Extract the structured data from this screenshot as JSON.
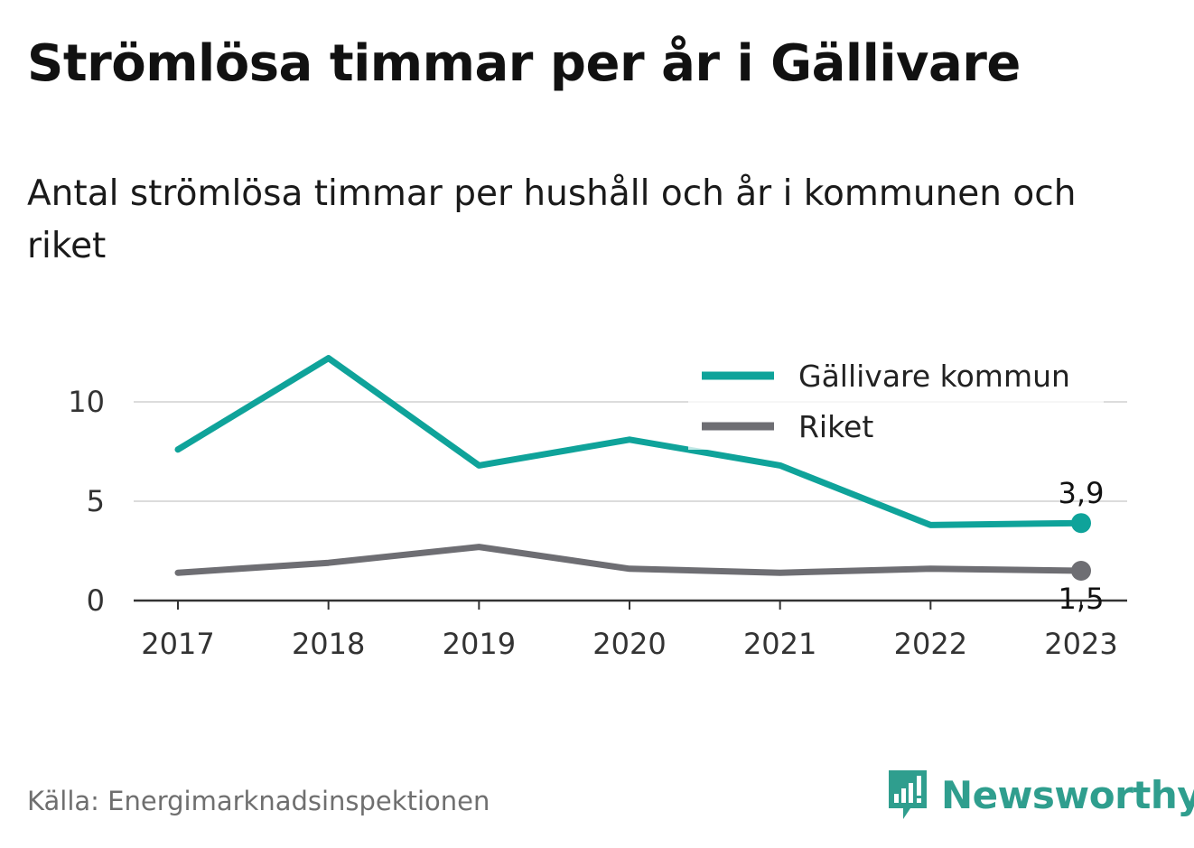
{
  "title": "Strömlösa timmar per år i Gällivare",
  "subtitle": "Antal strömlösa timmar per hushåll och år i kommunen och riket",
  "source": "Källa: Energimarknadsinspektionen",
  "brand": {
    "name": "Newsworthy",
    "icon": "newsworthy-logo-icon",
    "color": "#2f9e8e"
  },
  "chart_data": {
    "type": "line",
    "categories": [
      "2017",
      "2018",
      "2019",
      "2020",
      "2021",
      "2022",
      "2023"
    ],
    "ylim": [
      0,
      12
    ],
    "yticks": [
      0,
      5,
      10
    ],
    "ytick_labels": [
      "0",
      "5",
      "10"
    ],
    "grid": true,
    "legend_position": "top-right",
    "series": [
      {
        "name": "Gällivare kommun",
        "color": "#0fa39a",
        "values": [
          7.6,
          12.2,
          6.8,
          8.1,
          6.8,
          3.8,
          3.9
        ],
        "end_label": "3,9"
      },
      {
        "name": "Riket",
        "color": "#6e6e73",
        "values": [
          1.4,
          1.9,
          2.7,
          1.6,
          1.4,
          1.6,
          1.5
        ],
        "end_label": "1,5"
      }
    ]
  }
}
